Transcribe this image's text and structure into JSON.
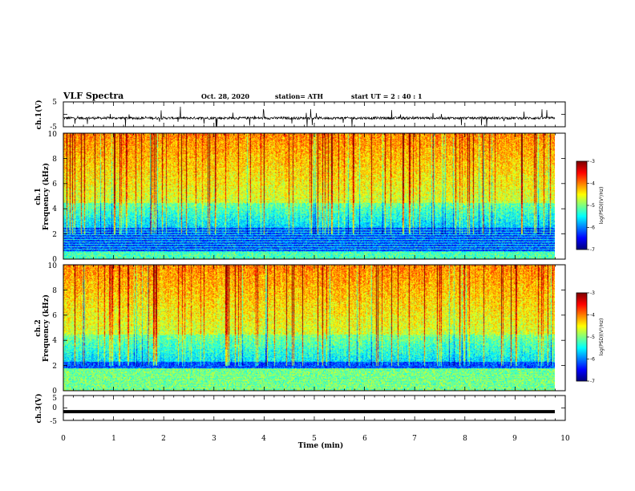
{
  "header": {
    "title": "VLF Spectra",
    "date": "Oct. 28, 2020",
    "station": "station= ATH",
    "start": "start  UT =   2 : 40 : 1"
  },
  "chart_data": [
    {
      "type": "line",
      "name": "ch1-waveform",
      "ylabel": "ch.1(V)",
      "ylim": [
        -5,
        5
      ],
      "yticks": [
        "5",
        "-5"
      ],
      "xlim": [
        0,
        10
      ],
      "description_values": {
        "baseline": -1.5,
        "noise_amplitude": 1.0
      }
    },
    {
      "type": "heatmap",
      "name": "ch1-spectrogram",
      "ylabel_line1": "ch.1",
      "ylabel_line2": "Frequency (kHz)",
      "ylim": [
        0,
        10
      ],
      "yticks": [
        "0",
        "2",
        "4",
        "6",
        "8",
        "10"
      ],
      "xlim": [
        0,
        9.8
      ],
      "colorbar": {
        "label": "log(PSD)(V²/Hz)",
        "ticks": [
          "-3",
          "-4",
          "-5",
          "-6",
          "-7"
        ],
        "range": [
          -7,
          -3
        ]
      }
    },
    {
      "type": "heatmap",
      "name": "ch2-spectrogram",
      "ylabel_line1": "ch.2",
      "ylabel_line2": "Frequency (kHz)",
      "ylim": [
        0,
        10
      ],
      "yticks": [
        "0",
        "2",
        "4",
        "6",
        "8",
        "10"
      ],
      "xlim": [
        0,
        9.8
      ],
      "colorbar": {
        "label": "log(PSD)(V²/Hz)",
        "ticks": [
          "-3",
          "-4",
          "-5",
          "-6",
          "-7"
        ],
        "range": [
          -7,
          -3
        ]
      }
    },
    {
      "type": "line",
      "name": "ch3-waveform",
      "ylabel": "ch.3(V)",
      "ylim": [
        -5,
        5
      ],
      "yticks": [
        "5",
        "0",
        "-5"
      ],
      "xlim": [
        0,
        10
      ],
      "description_values": {
        "baseline": -1.5,
        "noise_amplitude": 0.2
      }
    }
  ],
  "xaxis": {
    "label": "Time  (min)",
    "ticks": [
      "0",
      "1",
      "2",
      "3",
      "4",
      "5",
      "6",
      "7",
      "8",
      "9",
      "10"
    ]
  }
}
